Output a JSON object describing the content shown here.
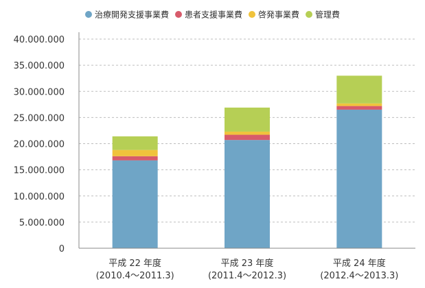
{
  "chart_data": {
    "type": "bar",
    "stacked": true,
    "categories": [
      [
        "平成 22 年度",
        "(2010.4～2011.3)"
      ],
      [
        "平成 23 年度",
        "(2011.4～2012.3)"
      ],
      [
        "平成 24 年度",
        "(2012.4～2013.3)"
      ]
    ],
    "series": [
      {
        "name": "治療開発支援事業費",
        "color": "#6fa5c6",
        "values": [
          16800000,
          20700000,
          26500000
        ]
      },
      {
        "name": "患者支援事業費",
        "color": "#d75b6b",
        "values": [
          800000,
          1000000,
          700000
        ]
      },
      {
        "name": "啓発事業費",
        "color": "#f0c33c",
        "values": [
          1200000,
          600000,
          500000
        ]
      },
      {
        "name": "管理費",
        "color": "#b6cf55",
        "values": [
          2600000,
          4600000,
          5300000
        ]
      }
    ],
    "ylim": [
      0,
      40000000
    ],
    "yticks": [
      0,
      5000000,
      10000000,
      15000000,
      20000000,
      25000000,
      30000000,
      35000000,
      40000000
    ],
    "ytick_labels": [
      "0",
      "5.000.000",
      "10.000.000",
      "15.000.000",
      "20.000.000",
      "25.000.000",
      "30.000.000",
      "35.000.000",
      "40.000.000"
    ],
    "grid": true,
    "legend_position": "top"
  }
}
